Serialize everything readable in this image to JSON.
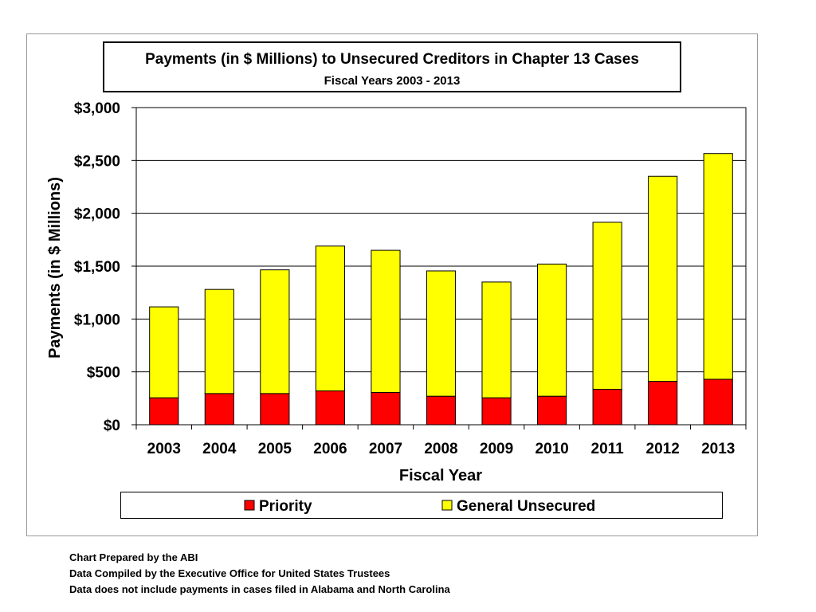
{
  "chart_data": {
    "type": "bar",
    "stacked": true,
    "title": "Payments (in $ Millions) to Unsecured Creditors in Chapter 13 Cases",
    "subtitle": "Fiscal Years 2003 - 2013",
    "xlabel": "Fiscal Year",
    "ylabel": "Payments (in $ Millions)",
    "ylim": [
      0,
      3000
    ],
    "yticks": [
      0,
      500,
      1000,
      1500,
      2000,
      2500,
      3000
    ],
    "ytick_labels": [
      "$0",
      "$500",
      "$1,000",
      "$1,500",
      "$2,000",
      "$2,500",
      "$3,000"
    ],
    "grid": true,
    "legend_position": "bottom",
    "categories": [
      "2003",
      "2004",
      "2005",
      "2006",
      "2007",
      "2008",
      "2009",
      "2010",
      "2011",
      "2012",
      "2013"
    ],
    "series": [
      {
        "name": "Priority",
        "color": "#ff0000",
        "values": [
          255,
          295,
          295,
          320,
          305,
          270,
          255,
          270,
          335,
          410,
          430
        ]
      },
      {
        "name": "General Unsecured",
        "color": "#ffff00",
        "values": [
          860,
          985,
          1170,
          1370,
          1345,
          1185,
          1095,
          1250,
          1580,
          1940,
          2135
        ]
      }
    ]
  },
  "notes": {
    "line1": "Chart Prepared by the ABI",
    "line2": "Data Compiled by the Executive Office for United States Trustees",
    "line3": "Data does not include payments in cases filed in Alabama and North Carolina"
  }
}
